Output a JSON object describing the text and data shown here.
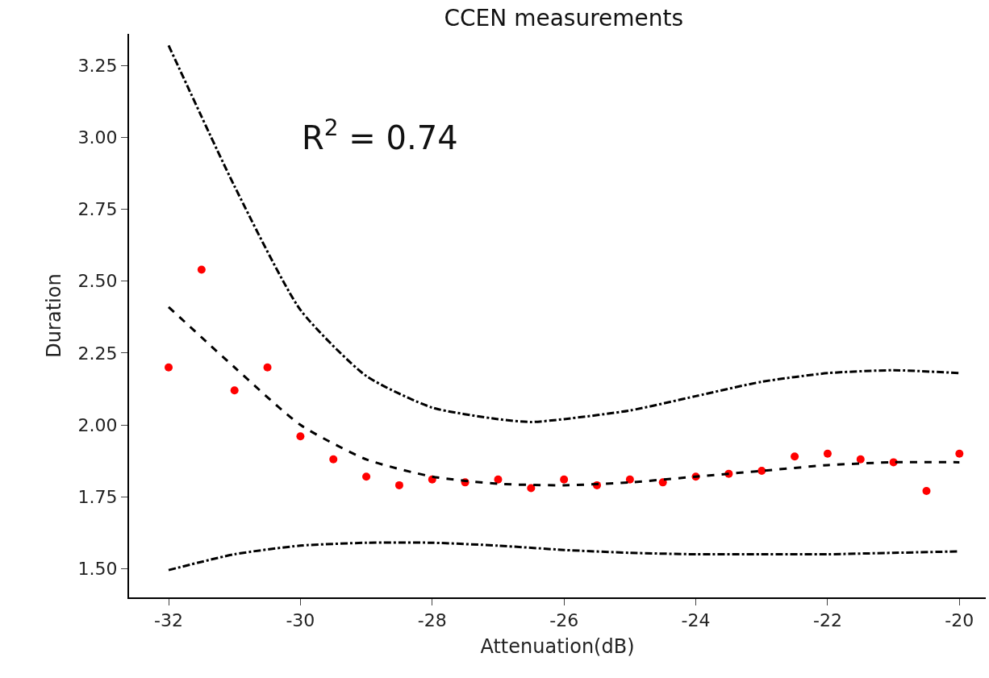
{
  "chart_data": {
    "type": "scatter",
    "title": "CCEN measurements",
    "xlabel": "Attenuation(dB)",
    "ylabel": "Duration",
    "annotations": [
      "R$^{2}$ = 0.74"
    ],
    "xlim": [
      -32.6,
      -19.6
    ],
    "xticks": [
      -32,
      -30,
      -28,
      -26,
      -24,
      -22,
      -20
    ],
    "ylim": [
      1.4,
      3.36
    ],
    "yticks": [
      {
        "value": 1.5,
        "label": "1.50"
      },
      {
        "value": 1.75,
        "label": "1.75"
      },
      {
        "value": 2.0,
        "label": "2.00"
      },
      {
        "value": 2.25,
        "label": "2.25"
      },
      {
        "value": 2.5,
        "label": "2.50"
      },
      {
        "value": 2.75,
        "label": "2.75"
      },
      {
        "value": 3.0,
        "label": "3.00"
      },
      {
        "value": 3.25,
        "label": "3.25"
      }
    ],
    "grid": false,
    "series": [
      {
        "type": "scatter",
        "marker": "circle",
        "color": "#ff0000",
        "x": [
          -32,
          -31.5,
          -31,
          -30.5,
          -30,
          -29.5,
          -29,
          -28.5,
          -28,
          -27.5,
          -27,
          -26.5,
          -26,
          -25.5,
          -25,
          -24.5,
          -24,
          -23.5,
          -23,
          -22.5,
          -22,
          -21.5,
          -21,
          -20.5,
          -20
        ],
        "values": [
          2.2,
          2.54,
          2.12,
          2.2,
          1.96,
          1.88,
          1.82,
          1.79,
          1.81,
          1.8,
          1.81,
          1.78,
          1.81,
          1.79,
          1.81,
          1.8,
          1.82,
          1.83,
          1.84,
          1.89,
          1.9,
          1.88,
          1.87,
          1.77,
          1.9
        ]
      },
      {
        "type": "line",
        "line_style": "dashed",
        "color": "#000000",
        "x": [
          -32,
          -31,
          -30,
          -29,
          -28,
          -27,
          -26,
          -25,
          -24,
          -23,
          -22,
          -21,
          -20
        ],
        "values": [
          2.41,
          2.2,
          2.0,
          1.88,
          1.82,
          1.795,
          1.79,
          1.8,
          1.82,
          1.84,
          1.86,
          1.87,
          1.87
        ]
      },
      {
        "type": "line",
        "line_style": "dashdot",
        "color": "#000000",
        "x": [
          -32,
          -31,
          -30,
          -29,
          -28,
          -27,
          -26.5,
          -26,
          -25,
          -24,
          -23,
          -22,
          -21,
          -20
        ],
        "values": [
          3.32,
          2.83,
          2.4,
          2.17,
          2.06,
          2.02,
          2.01,
          2.02,
          2.05,
          2.1,
          2.15,
          2.18,
          2.19,
          2.18
        ]
      },
      {
        "type": "line",
        "line_style": "dashdot",
        "color": "#000000",
        "x": [
          -32,
          -31,
          -30,
          -29,
          -28,
          -27,
          -26,
          -25,
          -24,
          -23,
          -22,
          -21,
          -20
        ],
        "values": [
          1.495,
          1.55,
          1.58,
          1.59,
          1.59,
          1.58,
          1.565,
          1.555,
          1.55,
          1.55,
          1.55,
          1.555,
          1.56
        ]
      }
    ]
  }
}
